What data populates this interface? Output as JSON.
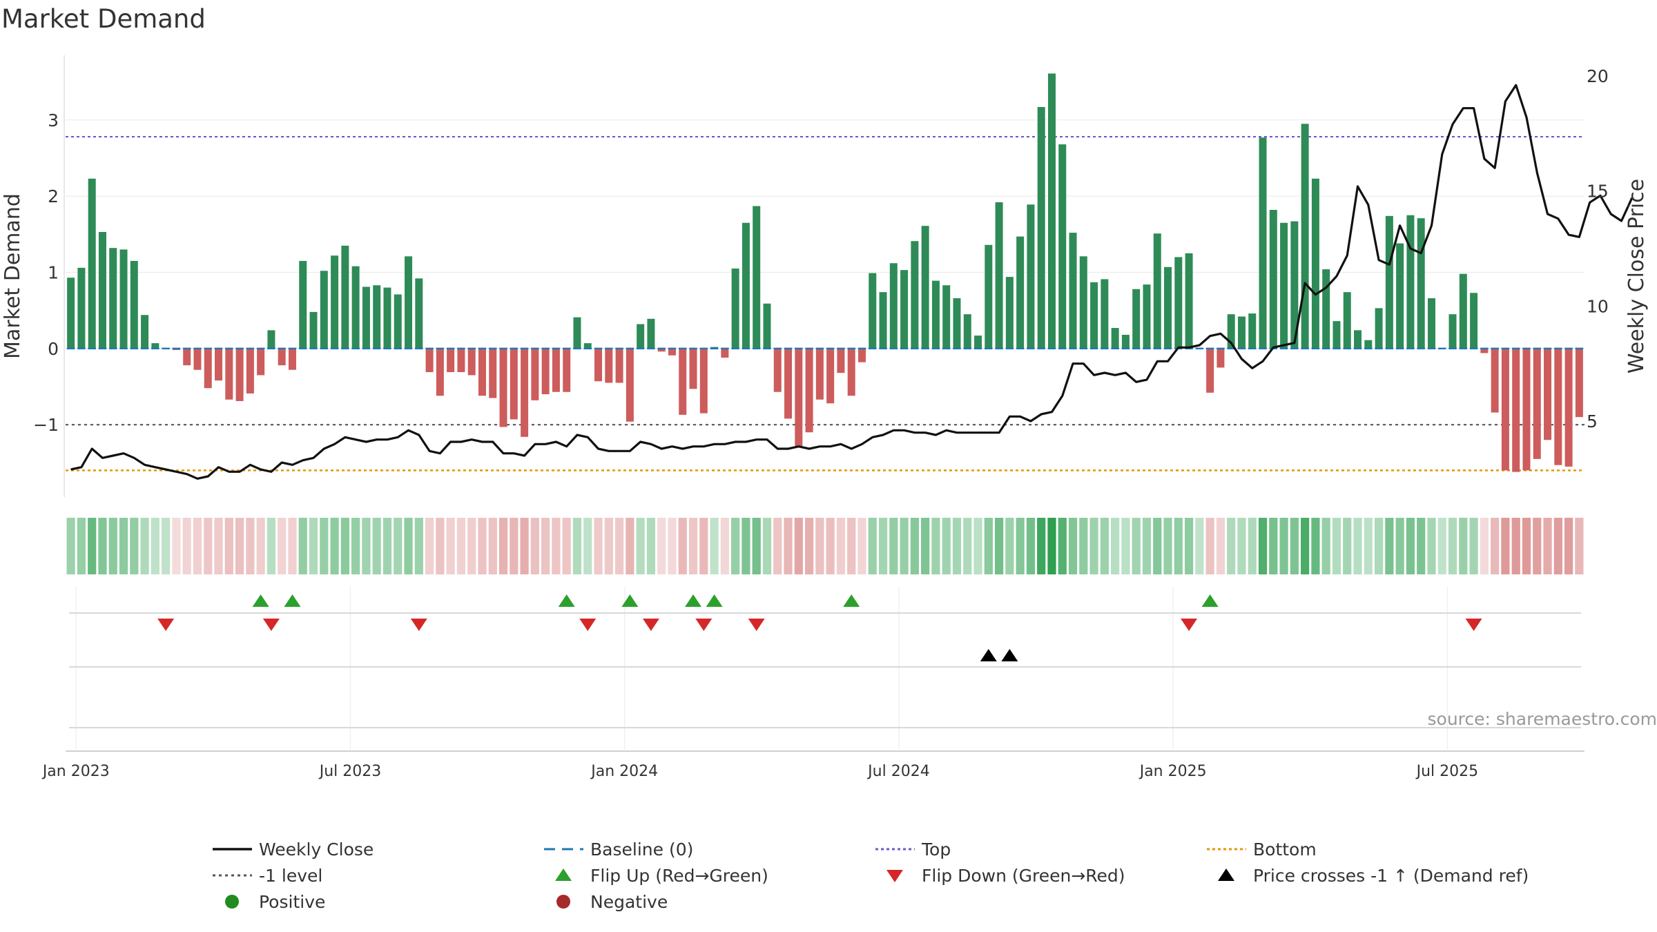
{
  "title": "Market Demand",
  "source": "source: sharemaestro.com",
  "colors": {
    "green": "#2e8b57",
    "red": "#cd5c5c",
    "line": "#111111",
    "baseline": "#1f77b4",
    "top": "#6a5acd",
    "minus1": "#555555",
    "bottom": "#e69500",
    "flip_up": "#2ca02c",
    "flip_down": "#d62728",
    "cross": "#000000",
    "positive": "#228b22",
    "negative": "#a52a2a"
  },
  "chart_data": {
    "type": "bar",
    "title": "Market Demand",
    "ylabel": "Market Demand",
    "y2label": "Weekly Close Price",
    "ylim": [
      -1.95,
      3.85
    ],
    "y2lim": [
      1.7,
      20.9
    ],
    "yticks": [
      3,
      2,
      1,
      0,
      -1
    ],
    "ytick_labels": [
      "3",
      "2",
      "1",
      "0",
      "−1"
    ],
    "y2ticks": [
      20,
      15,
      10,
      5
    ],
    "y2tick_labels": [
      "20",
      "15",
      "10",
      "5"
    ],
    "xticks": [
      {
        "label": "Jan 2023",
        "week": 1.5
      },
      {
        "label": "Jul 2023",
        "week": 27.5
      },
      {
        "label": "Jan 2024",
        "week": 53.5
      },
      {
        "label": "Jul 2024",
        "week": 79.5
      },
      {
        "label": "Jan 2025",
        "week": 105.5
      },
      {
        "label": "Jul 2025",
        "week": 131.5
      }
    ],
    "reference_lines": {
      "top": 2.78,
      "minus1": -1.0,
      "bottom": -1.6,
      "baseline": 0
    },
    "demand": [
      0.93,
      1.06,
      2.23,
      1.53,
      1.32,
      1.3,
      1.15,
      0.44,
      0.07,
      0,
      -0.02,
      -0.22,
      -0.28,
      -0.52,
      -0.42,
      -0.67,
      -0.69,
      -0.59,
      -0.35,
      0.24,
      -0.22,
      -0.28,
      1.15,
      0.48,
      1.02,
      1.22,
      1.35,
      1.08,
      0.81,
      0.83,
      0.8,
      0.71,
      1.21,
      0.92,
      -0.31,
      -0.62,
      -0.31,
      -0.31,
      -0.35,
      -0.62,
      -0.65,
      -1.03,
      -0.93,
      -1.16,
      -0.68,
      -0.6,
      -0.57,
      -0.57,
      0.41,
      0.07,
      -0.43,
      -0.45,
      -0.45,
      -0.96,
      0.32,
      0.39,
      -0.04,
      -0.09,
      -0.87,
      -0.53,
      -0.85,
      0.02,
      -0.12,
      1.05,
      1.65,
      1.87,
      0.59,
      -0.57,
      -0.92,
      -1.3,
      -1.1,
      -0.67,
      -0.72,
      -0.32,
      -0.62,
      -0.18,
      0.99,
      0.74,
      1.12,
      1.03,
      1.41,
      1.61,
      0.89,
      0.83,
      0.66,
      0.45,
      0.17,
      1.36,
      1.92,
      0.94,
      1.47,
      1.89,
      3.17,
      3.61,
      2.68,
      1.52,
      1.21,
      0.87,
      0.91,
      0.27,
      0.18,
      0.78,
      0.84,
      1.51,
      1.07,
      1.2,
      1.25,
      0,
      -0.58,
      -0.25,
      0.45,
      0.42,
      0.46,
      2.77,
      1.82,
      1.65,
      1.67,
      2.95,
      2.23,
      1.04,
      0.36,
      0.74,
      0.24,
      0.11,
      0.53,
      1.74,
      1.38,
      1.75,
      1.71,
      0.66,
      0,
      0.45,
      0.98,
      0.73,
      -0.06,
      -0.84,
      -1.6,
      -1.62,
      -1.6,
      -1.45,
      -1.2,
      -1.53,
      -1.55,
      -0.9
    ],
    "close": [
      2.9,
      3.0,
      3.8,
      3.4,
      3.5,
      3.6,
      3.4,
      3.1,
      3.0,
      2.9,
      2.8,
      2.7,
      2.5,
      2.6,
      3.0,
      2.8,
      2.8,
      3.1,
      2.9,
      2.8,
      3.2,
      3.1,
      3.3,
      3.4,
      3.8,
      4.0,
      4.3,
      4.2,
      4.1,
      4.2,
      4.2,
      4.3,
      4.6,
      4.4,
      3.7,
      3.6,
      4.1,
      4.1,
      4.2,
      4.1,
      4.1,
      3.6,
      3.6,
      3.5,
      4.0,
      4.0,
      4.1,
      3.9,
      4.4,
      4.3,
      3.8,
      3.7,
      3.7,
      3.7,
      4.1,
      4.0,
      3.8,
      3.9,
      3.8,
      3.9,
      3.9,
      4.0,
      4.0,
      4.1,
      4.1,
      4.2,
      4.2,
      3.8,
      3.8,
      3.9,
      3.8,
      3.9,
      3.9,
      4.0,
      3.8,
      4.0,
      4.3,
      4.4,
      4.6,
      4.6,
      4.5,
      4.5,
      4.4,
      4.6,
      4.5,
      4.5,
      4.5,
      4.5,
      4.5,
      5.2,
      5.2,
      5.0,
      5.3,
      5.4,
      6.1,
      7.5,
      7.5,
      7.0,
      7.1,
      7.0,
      7.1,
      6.7,
      6.8,
      7.6,
      7.6,
      8.2,
      8.2,
      8.3,
      8.7,
      8.8,
      8.4,
      7.7,
      7.3,
      7.6,
      8.2,
      8.3,
      8.4,
      11.0,
      10.5,
      10.8,
      11.3,
      12.2,
      15.2,
      14.4,
      12.0,
      11.8,
      13.5,
      12.5,
      12.3,
      13.5,
      16.6,
      17.9,
      18.6,
      18.6,
      16.4,
      16.0,
      18.9,
      19.6,
      18.2,
      15.8,
      14.0,
      13.8,
      13.1,
      13.0,
      14.5,
      14.8,
      14.0,
      13.7,
      14.7
    ]
  },
  "flips_up": [
    18,
    21,
    47,
    53,
    59,
    61,
    74,
    108
  ],
  "flips_down": [
    9,
    19,
    33,
    49,
    55,
    60,
    65,
    106,
    133
  ],
  "price_crosses": [
    87,
    89
  ],
  "legend": {
    "weekly_close": "Weekly Close",
    "baseline": "Baseline (0)",
    "top": "Top",
    "bottom": "Bottom",
    "minus1": "-1 level",
    "flip_up": "Flip Up (Red→Green)",
    "flip_down": "Flip Down (Green→Red)",
    "price_cross": "Price crosses -1 ↑ (Demand ref)",
    "positive": "Positive",
    "negative": "Negative"
  }
}
